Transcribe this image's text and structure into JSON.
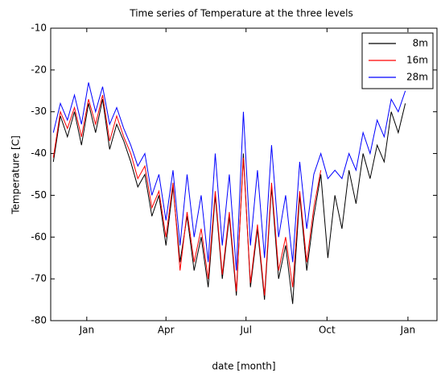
{
  "chart_data": {
    "type": "line",
    "title": "Time series of Temperature at the three levels",
    "xlabel": "date [month]",
    "ylabel": "Temperature [C]",
    "x": [
      -38,
      -30,
      -22,
      -14,
      -6,
      2,
      10,
      18,
      26,
      34,
      42,
      50,
      58,
      66,
      74,
      82,
      90,
      98,
      106,
      114,
      122,
      130,
      138,
      146,
      154,
      162,
      170,
      178,
      186,
      194,
      202,
      210,
      218,
      226,
      234,
      242,
      250,
      258,
      266,
      274,
      282,
      290,
      298,
      306,
      314,
      322,
      330,
      338,
      346,
      354,
      362
    ],
    "series": [
      {
        "name": "8m",
        "color": "#000000",
        "values": [
          -42,
          -31,
          -36,
          -30,
          -38,
          -28,
          -35,
          -27,
          -39,
          -33,
          -37,
          -42,
          -48,
          -45,
          -55,
          -50,
          -62,
          -48,
          -66,
          -55,
          -68,
          -60,
          -72,
          -50,
          -70,
          -55,
          -74,
          -40,
          -72,
          -58,
          -75,
          -48,
          -70,
          -62,
          -76,
          -50,
          -68,
          -55,
          -45,
          -65,
          -50,
          -58,
          -44,
          -52,
          -40,
          -46,
          -38,
          -42,
          -30,
          -35,
          -28
        ]
      },
      {
        "name": "16m",
        "color": "#ff0000",
        "values": [
          -41,
          -30,
          -34,
          -29,
          -36,
          -27,
          -33,
          -26,
          -37,
          -31,
          -36,
          -40,
          -46,
          -43,
          -53,
          -49,
          -60,
          -47,
          -68,
          -54,
          -66,
          -58,
          -70,
          -49,
          -69,
          -54,
          -73,
          -41,
          -71,
          -57,
          -74,
          -47,
          -68,
          -60,
          -72,
          -49,
          -66,
          -53,
          -44,
          null,
          null,
          null,
          null,
          null,
          null,
          null,
          null,
          null,
          null,
          null,
          null
        ]
      },
      {
        "name": "28m",
        "color": "#0000ff",
        "values": [
          -35,
          -28,
          -32,
          -26,
          -33,
          -23,
          -30,
          -24,
          -33,
          -29,
          -34,
          -38,
          -43,
          -40,
          -50,
          -45,
          -56,
          -44,
          -62,
          -45,
          -60,
          -50,
          -66,
          -40,
          -62,
          -45,
          -68,
          -30,
          -62,
          -44,
          -65,
          -38,
          -60,
          -50,
          -66,
          -42,
          -58,
          -45,
          -40,
          -46,
          -44,
          -46,
          -40,
          -44,
          -35,
          -40,
          -32,
          -36,
          -27,
          -30,
          -25
        ]
      }
    ],
    "xlim": [
      -41,
      398
    ],
    "xticks": [
      {
        "value": 0,
        "label": "Jan"
      },
      {
        "value": 90,
        "label": "Apr"
      },
      {
        "value": 181,
        "label": "Jul"
      },
      {
        "value": 273,
        "label": "Oct"
      },
      {
        "value": 365,
        "label": "Jan"
      }
    ],
    "ylim": [
      -80,
      -10
    ],
    "yticks": [
      -80,
      -70,
      -60,
      -50,
      -40,
      -30,
      -20,
      -10
    ],
    "grid": false,
    "legend": "top-right"
  }
}
